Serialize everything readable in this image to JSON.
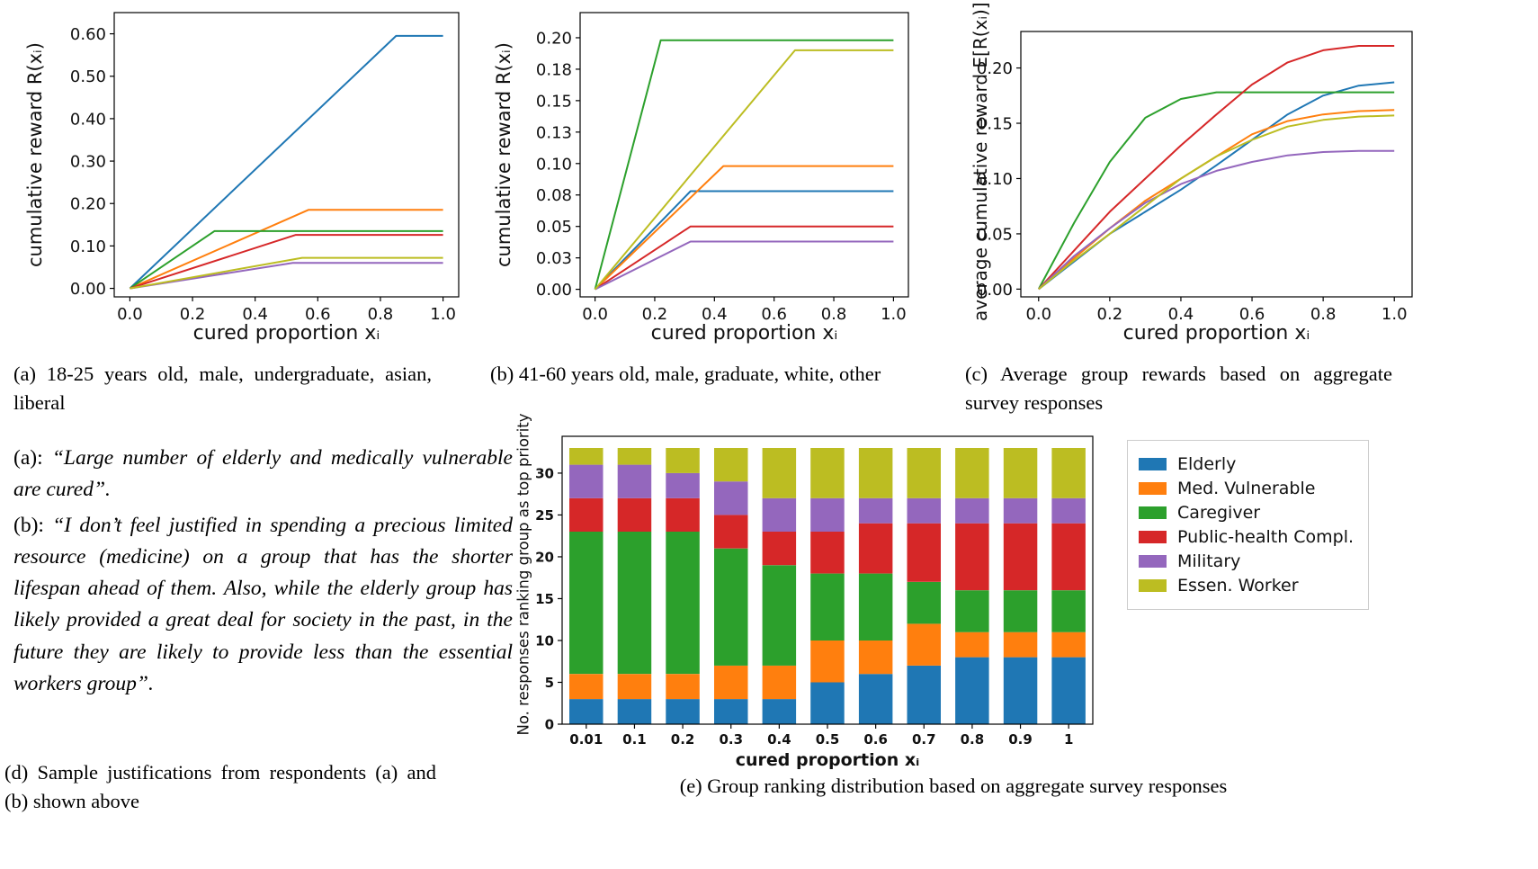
{
  "figure": {
    "captions": {
      "a": "(a) 18-25 years old, male, undergraduate, asian, liberal",
      "b": "(b) 41-60 years old, male, graduate, white, other",
      "c": "(c) Average group rewards based on aggregate survey responses",
      "d": "(d) Sample justifications from respondents (a) and (b) shown above",
      "e": "(e) Group ranking distribution based on aggregate survey responses"
    },
    "justifications": [
      {
        "prefix": "(a): ",
        "text": "“Large number of elderly and medically vulnerable are cured”."
      },
      {
        "prefix": "(b): ",
        "text": "“I don’t feel justified in spending a precious limited resource (medicine) on a group that has the shorter lifespan ahead of them. Also, while the elderly group has likely provided a great deal for society in the past, in the future they are likely to provide less than the essential workers group”."
      }
    ]
  },
  "chart_data": [
    {
      "id": "a",
      "type": "line",
      "xlabel": "cured proportion xᵢ",
      "ylabel": "cumulative reward R(xᵢ)",
      "xlim": [
        -0.05,
        1.05
      ],
      "ylim": [
        -0.02,
        0.65
      ],
      "xticks": [
        0.0,
        0.2,
        0.4,
        0.6,
        0.8,
        1.0
      ],
      "xtick_labels": [
        "0.0",
        "0.2",
        "0.4",
        "0.6",
        "0.8",
        "1.0"
      ],
      "yticks": [
        0.0,
        0.1,
        0.2,
        0.3,
        0.4,
        0.5,
        0.6
      ],
      "ytick_labels": [
        "0.00",
        "0.10",
        "0.20",
        "0.30",
        "0.40",
        "0.50",
        "0.60"
      ],
      "grid": false,
      "series": [
        {
          "name": "blue",
          "color": "#1f77b4",
          "points": [
            [
              0,
              0
            ],
            [
              0.85,
              0.595
            ],
            [
              1,
              0.595
            ]
          ]
        },
        {
          "name": "orange",
          "color": "#ff7f0e",
          "points": [
            [
              0,
              0
            ],
            [
              0.57,
              0.185
            ],
            [
              1,
              0.185
            ]
          ]
        },
        {
          "name": "green",
          "color": "#2ca02c",
          "points": [
            [
              0,
              0
            ],
            [
              0.27,
              0.135
            ],
            [
              1,
              0.135
            ]
          ]
        },
        {
          "name": "red",
          "color": "#d62728",
          "points": [
            [
              0,
              0
            ],
            [
              0.53,
              0.126
            ],
            [
              1,
              0.126
            ]
          ]
        },
        {
          "name": "purple",
          "color": "#9467bd",
          "points": [
            [
              0,
              0
            ],
            [
              0.52,
              0.06
            ],
            [
              1,
              0.06
            ]
          ]
        },
        {
          "name": "olive",
          "color": "#bcbd22",
          "points": [
            [
              0,
              0
            ],
            [
              0.55,
              0.072
            ],
            [
              1,
              0.072
            ]
          ]
        }
      ]
    },
    {
      "id": "b",
      "type": "line",
      "xlabel": "cured proportion xᵢ",
      "ylabel": "cumulative reward R(xᵢ)",
      "xlim": [
        -0.05,
        1.05
      ],
      "ylim": [
        -0.006,
        0.22
      ],
      "xticks": [
        0.0,
        0.2,
        0.4,
        0.6,
        0.8,
        1.0
      ],
      "xtick_labels": [
        "0.0",
        "0.2",
        "0.4",
        "0.6",
        "0.8",
        "1.0"
      ],
      "yticks": [
        0.0,
        0.025,
        0.05,
        0.075,
        0.1,
        0.125,
        0.15,
        0.175,
        0.2
      ],
      "ytick_labels": [
        "0.00",
        "0.03",
        "0.05",
        "0.08",
        "0.10",
        "0.13",
        "0.15",
        "0.18",
        "0.20"
      ],
      "grid": false,
      "series": [
        {
          "name": "blue",
          "color": "#1f77b4",
          "points": [
            [
              0,
              0
            ],
            [
              0.32,
              0.078
            ],
            [
              1,
              0.078
            ]
          ]
        },
        {
          "name": "orange",
          "color": "#ff7f0e",
          "points": [
            [
              0,
              0
            ],
            [
              0.43,
              0.098
            ],
            [
              1,
              0.098
            ]
          ]
        },
        {
          "name": "green",
          "color": "#2ca02c",
          "points": [
            [
              0,
              0
            ],
            [
              0.22,
              0.198
            ],
            [
              1,
              0.198
            ]
          ]
        },
        {
          "name": "red",
          "color": "#d62728",
          "points": [
            [
              0,
              0
            ],
            [
              0.32,
              0.05
            ],
            [
              1,
              0.05
            ]
          ]
        },
        {
          "name": "purple",
          "color": "#9467bd",
          "points": [
            [
              0,
              0
            ],
            [
              0.32,
              0.038
            ],
            [
              1,
              0.038
            ]
          ]
        },
        {
          "name": "olive",
          "color": "#bcbd22",
          "points": [
            [
              0,
              0
            ],
            [
              0.67,
              0.19
            ],
            [
              1,
              0.19
            ]
          ]
        }
      ]
    },
    {
      "id": "c",
      "type": "line",
      "xlabel": "cured proportion xᵢ",
      "ylabel": "average cumulative reward E[R(xᵢ)]",
      "xlim": [
        -0.05,
        1.05
      ],
      "ylim": [
        -0.007,
        0.233
      ],
      "xticks": [
        0.0,
        0.2,
        0.4,
        0.6,
        0.8,
        1.0
      ],
      "xtick_labels": [
        "0.0",
        "0.2",
        "0.4",
        "0.6",
        "0.8",
        "1.0"
      ],
      "yticks": [
        0.0,
        0.05,
        0.1,
        0.15,
        0.2
      ],
      "ytick_labels": [
        "0.00",
        "0.05",
        "0.10",
        "0.15",
        "0.20"
      ],
      "grid": false,
      "series": [
        {
          "name": "blue",
          "color": "#1f77b4",
          "points": [
            [
              0,
              0
            ],
            [
              0.1,
              0.025
            ],
            [
              0.2,
              0.05
            ],
            [
              0.3,
              0.07
            ],
            [
              0.4,
              0.09
            ],
            [
              0.5,
              0.112
            ],
            [
              0.6,
              0.135
            ],
            [
              0.7,
              0.158
            ],
            [
              0.8,
              0.175
            ],
            [
              0.9,
              0.184
            ],
            [
              1,
              0.187
            ]
          ]
        },
        {
          "name": "orange",
          "color": "#ff7f0e",
          "points": [
            [
              0,
              0
            ],
            [
              0.1,
              0.028
            ],
            [
              0.2,
              0.055
            ],
            [
              0.3,
              0.08
            ],
            [
              0.4,
              0.1
            ],
            [
              0.5,
              0.12
            ],
            [
              0.6,
              0.14
            ],
            [
              0.7,
              0.152
            ],
            [
              0.8,
              0.158
            ],
            [
              0.9,
              0.161
            ],
            [
              1,
              0.162
            ]
          ]
        },
        {
          "name": "green",
          "color": "#2ca02c",
          "points": [
            [
              0,
              0
            ],
            [
              0.1,
              0.06
            ],
            [
              0.2,
              0.115
            ],
            [
              0.3,
              0.155
            ],
            [
              0.4,
              0.172
            ],
            [
              0.5,
              0.178
            ],
            [
              0.6,
              0.178
            ],
            [
              0.7,
              0.178
            ],
            [
              0.8,
              0.178
            ],
            [
              0.9,
              0.178
            ],
            [
              1,
              0.178
            ]
          ]
        },
        {
          "name": "red",
          "color": "#d62728",
          "points": [
            [
              0,
              0
            ],
            [
              0.1,
              0.035
            ],
            [
              0.2,
              0.07
            ],
            [
              0.3,
              0.1
            ],
            [
              0.4,
              0.13
            ],
            [
              0.5,
              0.158
            ],
            [
              0.6,
              0.185
            ],
            [
              0.7,
              0.205
            ],
            [
              0.8,
              0.216
            ],
            [
              0.9,
              0.22
            ],
            [
              1,
              0.22
            ]
          ]
        },
        {
          "name": "purple",
          "color": "#9467bd",
          "points": [
            [
              0,
              0
            ],
            [
              0.1,
              0.03
            ],
            [
              0.2,
              0.055
            ],
            [
              0.3,
              0.078
            ],
            [
              0.4,
              0.095
            ],
            [
              0.5,
              0.107
            ],
            [
              0.6,
              0.115
            ],
            [
              0.7,
              0.121
            ],
            [
              0.8,
              0.124
            ],
            [
              0.9,
              0.125
            ],
            [
              1,
              0.125
            ]
          ]
        },
        {
          "name": "olive",
          "color": "#bcbd22",
          "points": [
            [
              0,
              0
            ],
            [
              0.1,
              0.026
            ],
            [
              0.2,
              0.05
            ],
            [
              0.3,
              0.075
            ],
            [
              0.4,
              0.1
            ],
            [
              0.5,
              0.12
            ],
            [
              0.6,
              0.135
            ],
            [
              0.7,
              0.147
            ],
            [
              0.8,
              0.153
            ],
            [
              0.9,
              0.156
            ],
            [
              1,
              0.157
            ]
          ]
        }
      ]
    },
    {
      "id": "e",
      "type": "bar",
      "stacked": true,
      "xlabel": "cured proportion xᵢ",
      "ylabel": "No. responses ranking group as top priority",
      "categories": [
        "0.01",
        "0.1",
        "0.2",
        "0.3",
        "0.4",
        "0.5",
        "0.6",
        "0.7",
        "0.8",
        "0.9",
        "1"
      ],
      "ylim": [
        0,
        34.4
      ],
      "yticks": [
        0,
        5,
        10,
        15,
        20,
        25,
        30
      ],
      "ytick_labels": [
        "0",
        "5",
        "10",
        "15",
        "20",
        "25",
        "30"
      ],
      "grid": false,
      "legend_position": "right",
      "series": [
        {
          "name": "Elderly",
          "color": "#1f77b4",
          "values": [
            3,
            3,
            3,
            3,
            3,
            5,
            6,
            7,
            8,
            8,
            8
          ]
        },
        {
          "name": "Med. Vulnerable",
          "color": "#ff7f0e",
          "values": [
            3,
            3,
            3,
            4,
            4,
            5,
            4,
            5,
            3,
            3,
            3
          ]
        },
        {
          "name": "Caregiver",
          "color": "#2ca02c",
          "values": [
            17,
            17,
            17,
            14,
            12,
            8,
            8,
            5,
            5,
            5,
            5
          ]
        },
        {
          "name": "Public-health Compl.",
          "color": "#d62728",
          "values": [
            4,
            4,
            4,
            4,
            4,
            5,
            6,
            7,
            8,
            8,
            8
          ]
        },
        {
          "name": "Military",
          "color": "#9467bd",
          "values": [
            4,
            4,
            3,
            4,
            4,
            4,
            3,
            3,
            3,
            3,
            3
          ]
        },
        {
          "name": "Essen. Worker",
          "color": "#bcbd22",
          "values": [
            2,
            2,
            3,
            4,
            6,
            6,
            6,
            6,
            6,
            6,
            6
          ]
        }
      ]
    }
  ]
}
